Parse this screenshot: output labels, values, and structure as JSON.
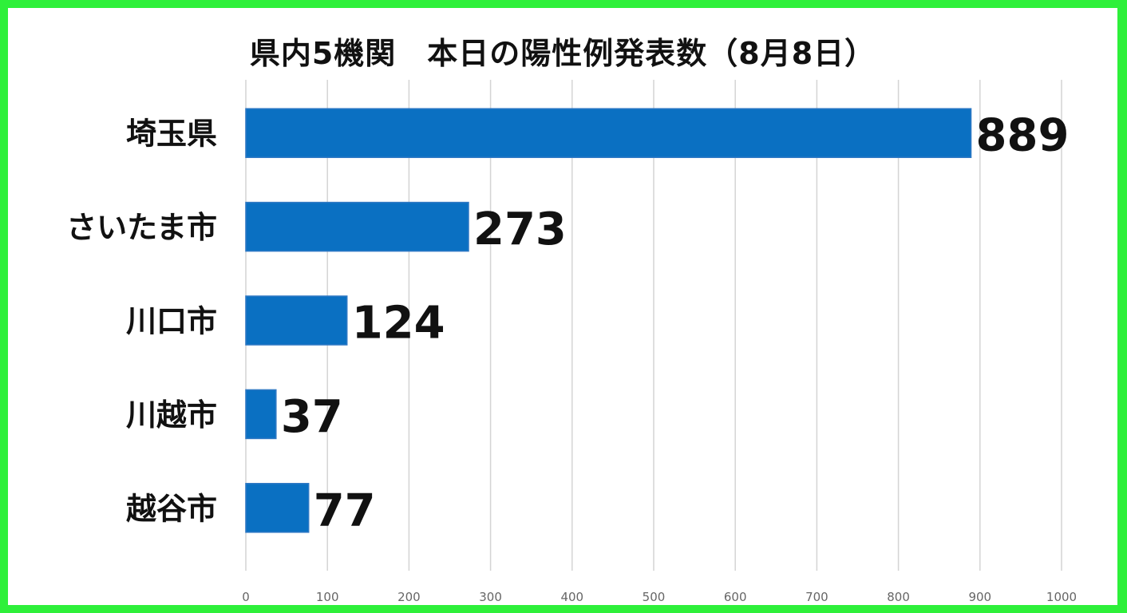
{
  "chart_data": {
    "type": "bar",
    "orientation": "horizontal",
    "title": "県内5機関　本日の陽性例発表数（8月8日）",
    "categories": [
      "埼玉県",
      "さいたま市",
      "川口市",
      "川越市",
      "越谷市"
    ],
    "values": [
      889,
      273,
      124,
      37,
      77
    ],
    "xlim": [
      0,
      1000
    ],
    "xticks": [
      0,
      100,
      200,
      300,
      400,
      500,
      600,
      700,
      800,
      900,
      1000
    ],
    "grid": "vertical",
    "bar_color": "#0a70c2",
    "show_value_labels": true
  }
}
